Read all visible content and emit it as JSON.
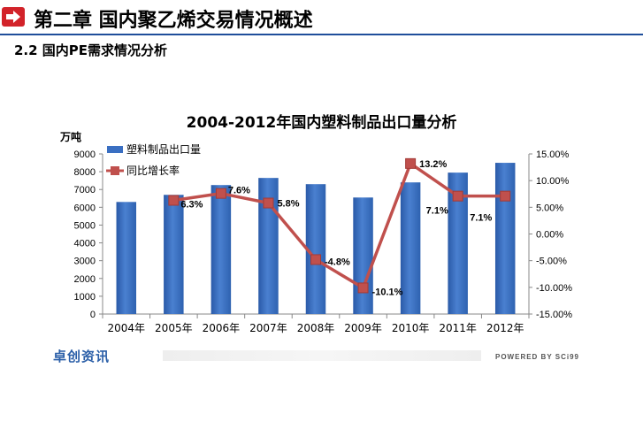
{
  "header": {
    "title": "第二章  国内聚乙烯交易情况概述",
    "icon": "arrow-right-icon",
    "accent_color": "#d2232a",
    "line_color": "#1f4e9b"
  },
  "section": {
    "title": "2.2 国内PE需求情况分析"
  },
  "footer": {
    "logo_text": "卓创资讯",
    "powered_text": "POWERED BY SCi99"
  },
  "chart_data": {
    "type": "bar",
    "title": "2004-2012年国内塑料制品出口量分析",
    "y_unit": "万吨",
    "categories": [
      "2004年",
      "2005年",
      "2006年",
      "2007年",
      "2008年",
      "2009年",
      "2010年",
      "2011年",
      "2012年"
    ],
    "y_left": {
      "min": 0,
      "max": 9000,
      "step": 1000,
      "ticks": [
        "0",
        "1000",
        "2000",
        "3000",
        "4000",
        "5000",
        "6000",
        "7000",
        "8000",
        "9000"
      ]
    },
    "y_right": {
      "min": -15,
      "max": 15,
      "step": 5,
      "ticks": [
        "-15.00%",
        "-10.00%",
        "-5.00%",
        "0.00%",
        "5.00%",
        "10.00%",
        "15.00%"
      ]
    },
    "series": [
      {
        "name": "塑料制品出口量",
        "kind": "bar",
        "axis": "left",
        "color": "#3a6fc2",
        "values": [
          6300,
          6700,
          7250,
          7650,
          7300,
          6550,
          7400,
          7950,
          8500
        ]
      },
      {
        "name": "同比增长率",
        "kind": "line",
        "axis": "right",
        "color": "#c0504d",
        "values": [
          null,
          6.3,
          7.6,
          5.8,
          -4.8,
          -10.1,
          13.2,
          7.1,
          7.1
        ],
        "labels": [
          "",
          "6.3%",
          "7.6%",
          "5.8%",
          "-4.8%",
          "-10.1%",
          "13.2%",
          "7.1%",
          "7.1%"
        ]
      }
    ],
    "legend": "top-left",
    "grid": false
  }
}
